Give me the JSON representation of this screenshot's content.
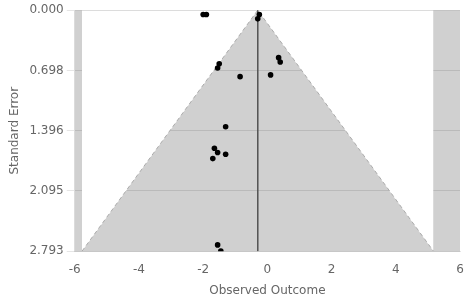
{
  "chart_data": {
    "type": "scatter",
    "xlabel": "Observed Outcome",
    "ylabel": "Standard Error",
    "xlim": [
      -6,
      6
    ],
    "ylim": [
      2.793,
      0
    ],
    "xticks": [
      -6,
      -4,
      -2,
      0,
      2,
      4,
      6
    ],
    "yticks": [
      {
        "value": 0,
        "label": "0.000"
      },
      0.698,
      1.396,
      2.095,
      2.793
    ],
    "grid": "y",
    "color": "#d0d0d0",
    "series": [
      {
        "type": "area",
        "color": "#ffffff",
        "x": [
          -5.77428,
          -0.3,
          5.17428
        ],
        "values": [
          2.793,
          0,
          2.793
        ]
      },
      {
        "type": "line",
        "line_style": "dashed",
        "color": "#aaaaaa",
        "x": [
          -5.77428,
          -0.3,
          5.17428
        ],
        "values": [
          2.793,
          0,
          2.793
        ]
      },
      {
        "type": "line",
        "line_style": "solid",
        "color": "#555555",
        "x": [
          -0.3,
          -0.3
        ],
        "values": [
          0,
          2.793
        ]
      },
      {
        "type": "scatter",
        "marker": "circle",
        "color": "#000000",
        "x": [
          -1.9,
          -1.5,
          -1.55,
          -1.3,
          -1.65,
          -1.55,
          -1.7,
          -0.85,
          0.35,
          0.4,
          0.1,
          -0.25,
          -0.3,
          -1.3,
          -1.55,
          -1.45,
          -2.0
        ],
        "values": [
          0.05,
          0.62,
          0.67,
          1.35,
          1.6,
          1.65,
          1.72,
          0.77,
          0.55,
          0.6,
          0.75,
          0.05,
          0.1,
          1.67,
          2.72,
          2.79,
          0.05
        ]
      }
    ]
  }
}
